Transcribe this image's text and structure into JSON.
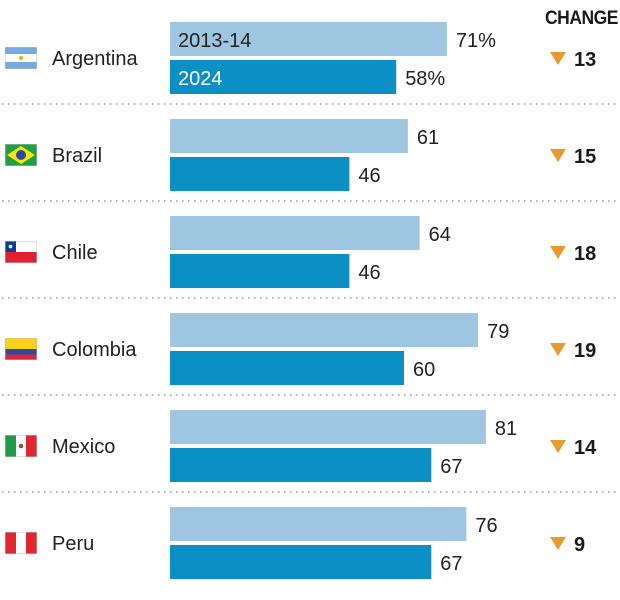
{
  "chart_data": {
    "type": "bar",
    "orientation": "horizontal",
    "title": "",
    "xlabel": "",
    "ylabel": "",
    "xlim": [
      0,
      100
    ],
    "grid": false,
    "categories": [
      "Argentina",
      "Brazil",
      "Chile",
      "Colombia",
      "Mexico",
      "Peru"
    ],
    "flags": [
      "argentina-flag",
      "brazil-flag",
      "chile-flag",
      "colombia-flag",
      "mexico-flag",
      "peru-flag"
    ],
    "series": [
      {
        "name": "2013-14",
        "color": "#9fc6e0",
        "values": [
          71,
          61,
          64,
          79,
          81,
          76
        ]
      },
      {
        "name": "2024",
        "color": "#0b8fc4",
        "values": [
          58,
          46,
          46,
          60,
          67,
          67
        ]
      }
    ],
    "value_labels": {
      "2013-14": [
        "71%",
        "61",
        "64",
        "79",
        "81",
        "76"
      ],
      "2024": [
        "58%",
        "46",
        "46",
        "60",
        "67",
        "67"
      ]
    },
    "change_header": "CHANGE",
    "change": {
      "values": [
        13,
        15,
        18,
        19,
        14,
        9
      ],
      "direction": "down",
      "icon": "down-triangle-icon",
      "icon_color": "#e89a2c"
    },
    "legend": "inline-in-first-row-bars"
  }
}
